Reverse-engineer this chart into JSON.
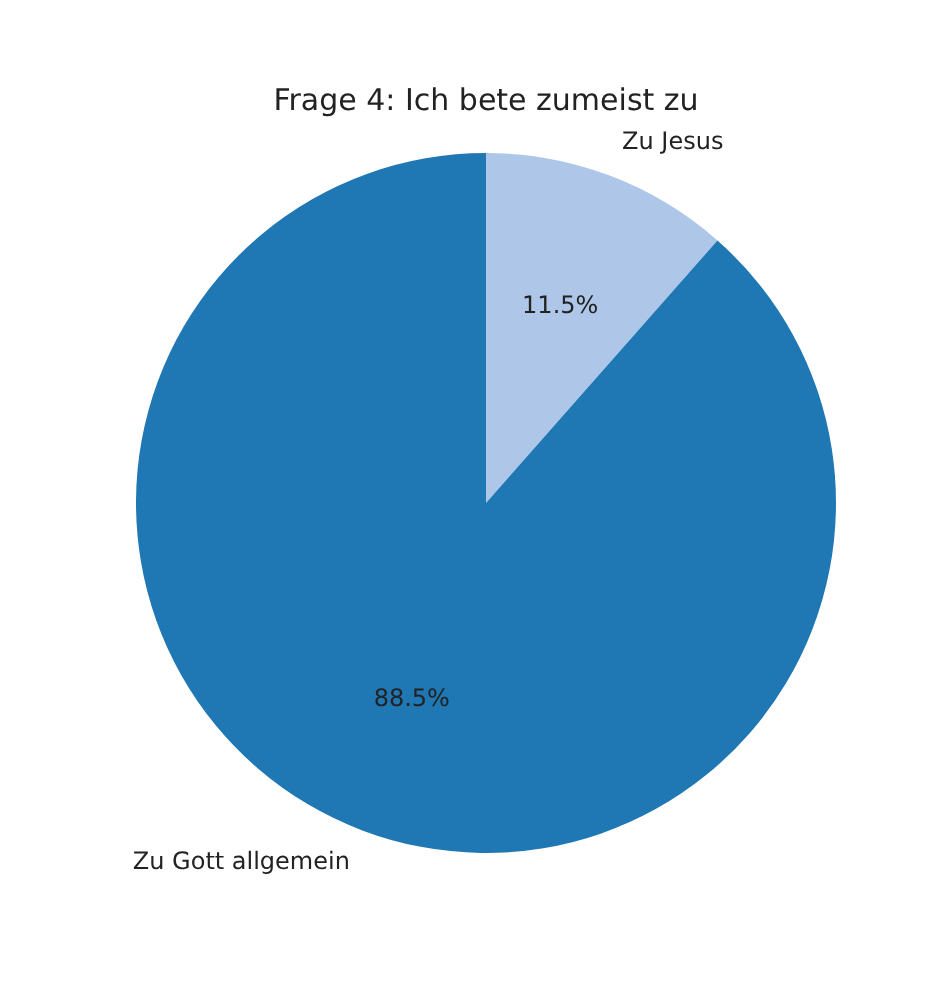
{
  "chart_data": {
    "type": "pie",
    "title": "Frage 4: Ich bete zumeist zu",
    "categories": [
      "Zu Jesus",
      "Zu Gott allgemein"
    ],
    "values": [
      11.5,
      88.5
    ],
    "colors": [
      "#aec7e8",
      "#1f77b4"
    ],
    "value_labels": [
      "11.5%",
      "88.5%"
    ],
    "legend": false
  }
}
